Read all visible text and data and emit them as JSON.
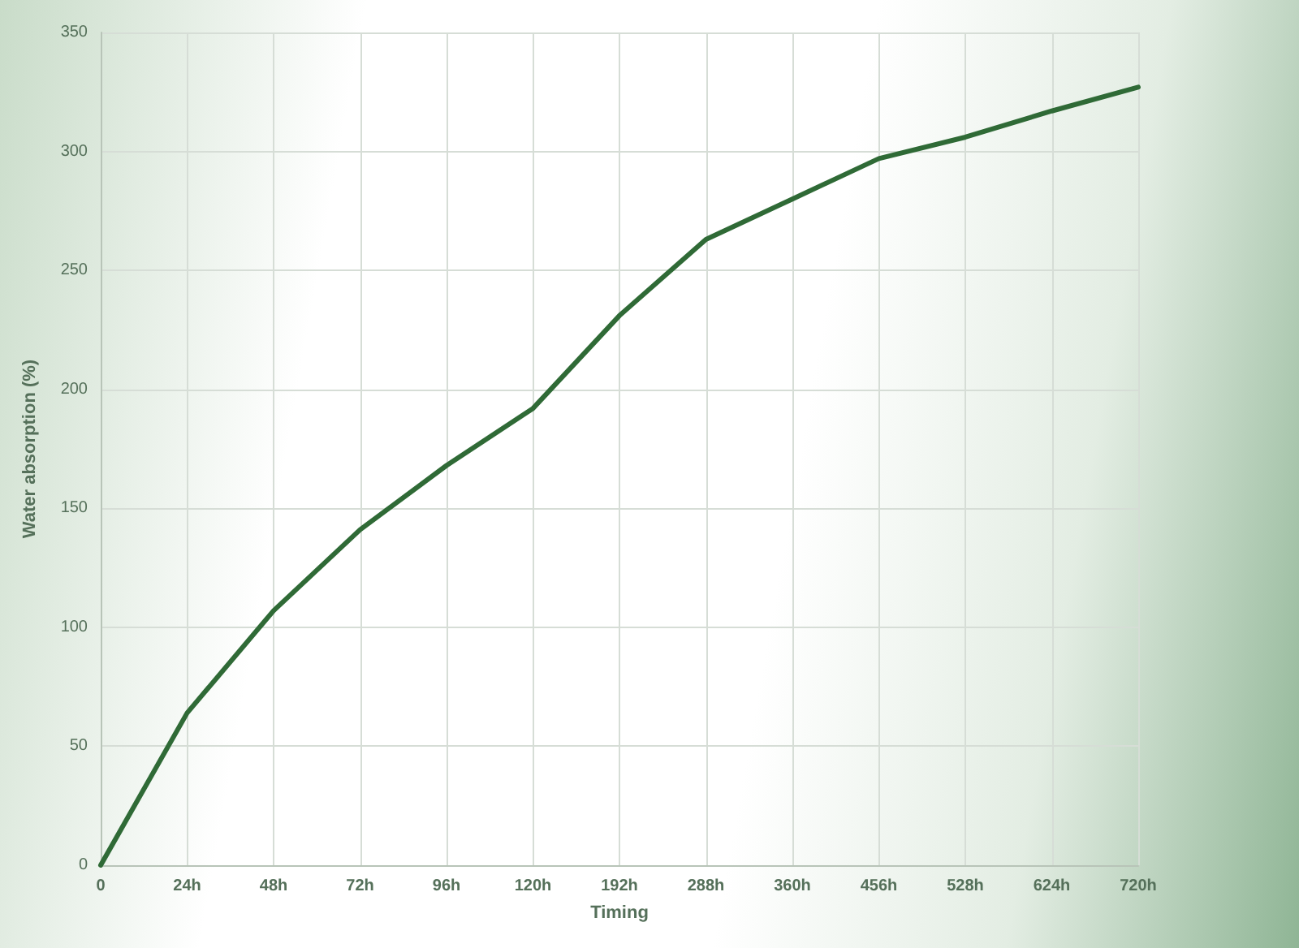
{
  "chart_data": {
    "type": "line",
    "xlabel": "Timing",
    "ylabel": "Water absorption (%)",
    "categories": [
      "0",
      "24h",
      "48h",
      "72h",
      "96h",
      "120h",
      "192h",
      "288h",
      "360h",
      "456h",
      "528h",
      "624h",
      "720h"
    ],
    "series": [
      {
        "color": "#2f6a36",
        "values": [
          0,
          64,
          107,
          141,
          168,
          192,
          231,
          263,
          280,
          297,
          306,
          317,
          327
        ]
      }
    ],
    "ylim": [
      0,
      350
    ],
    "yticks": [
      0,
      50,
      100,
      150,
      200,
      250,
      300,
      350
    ],
    "grid": true,
    "marker": "none",
    "line_style": "solid"
  }
}
